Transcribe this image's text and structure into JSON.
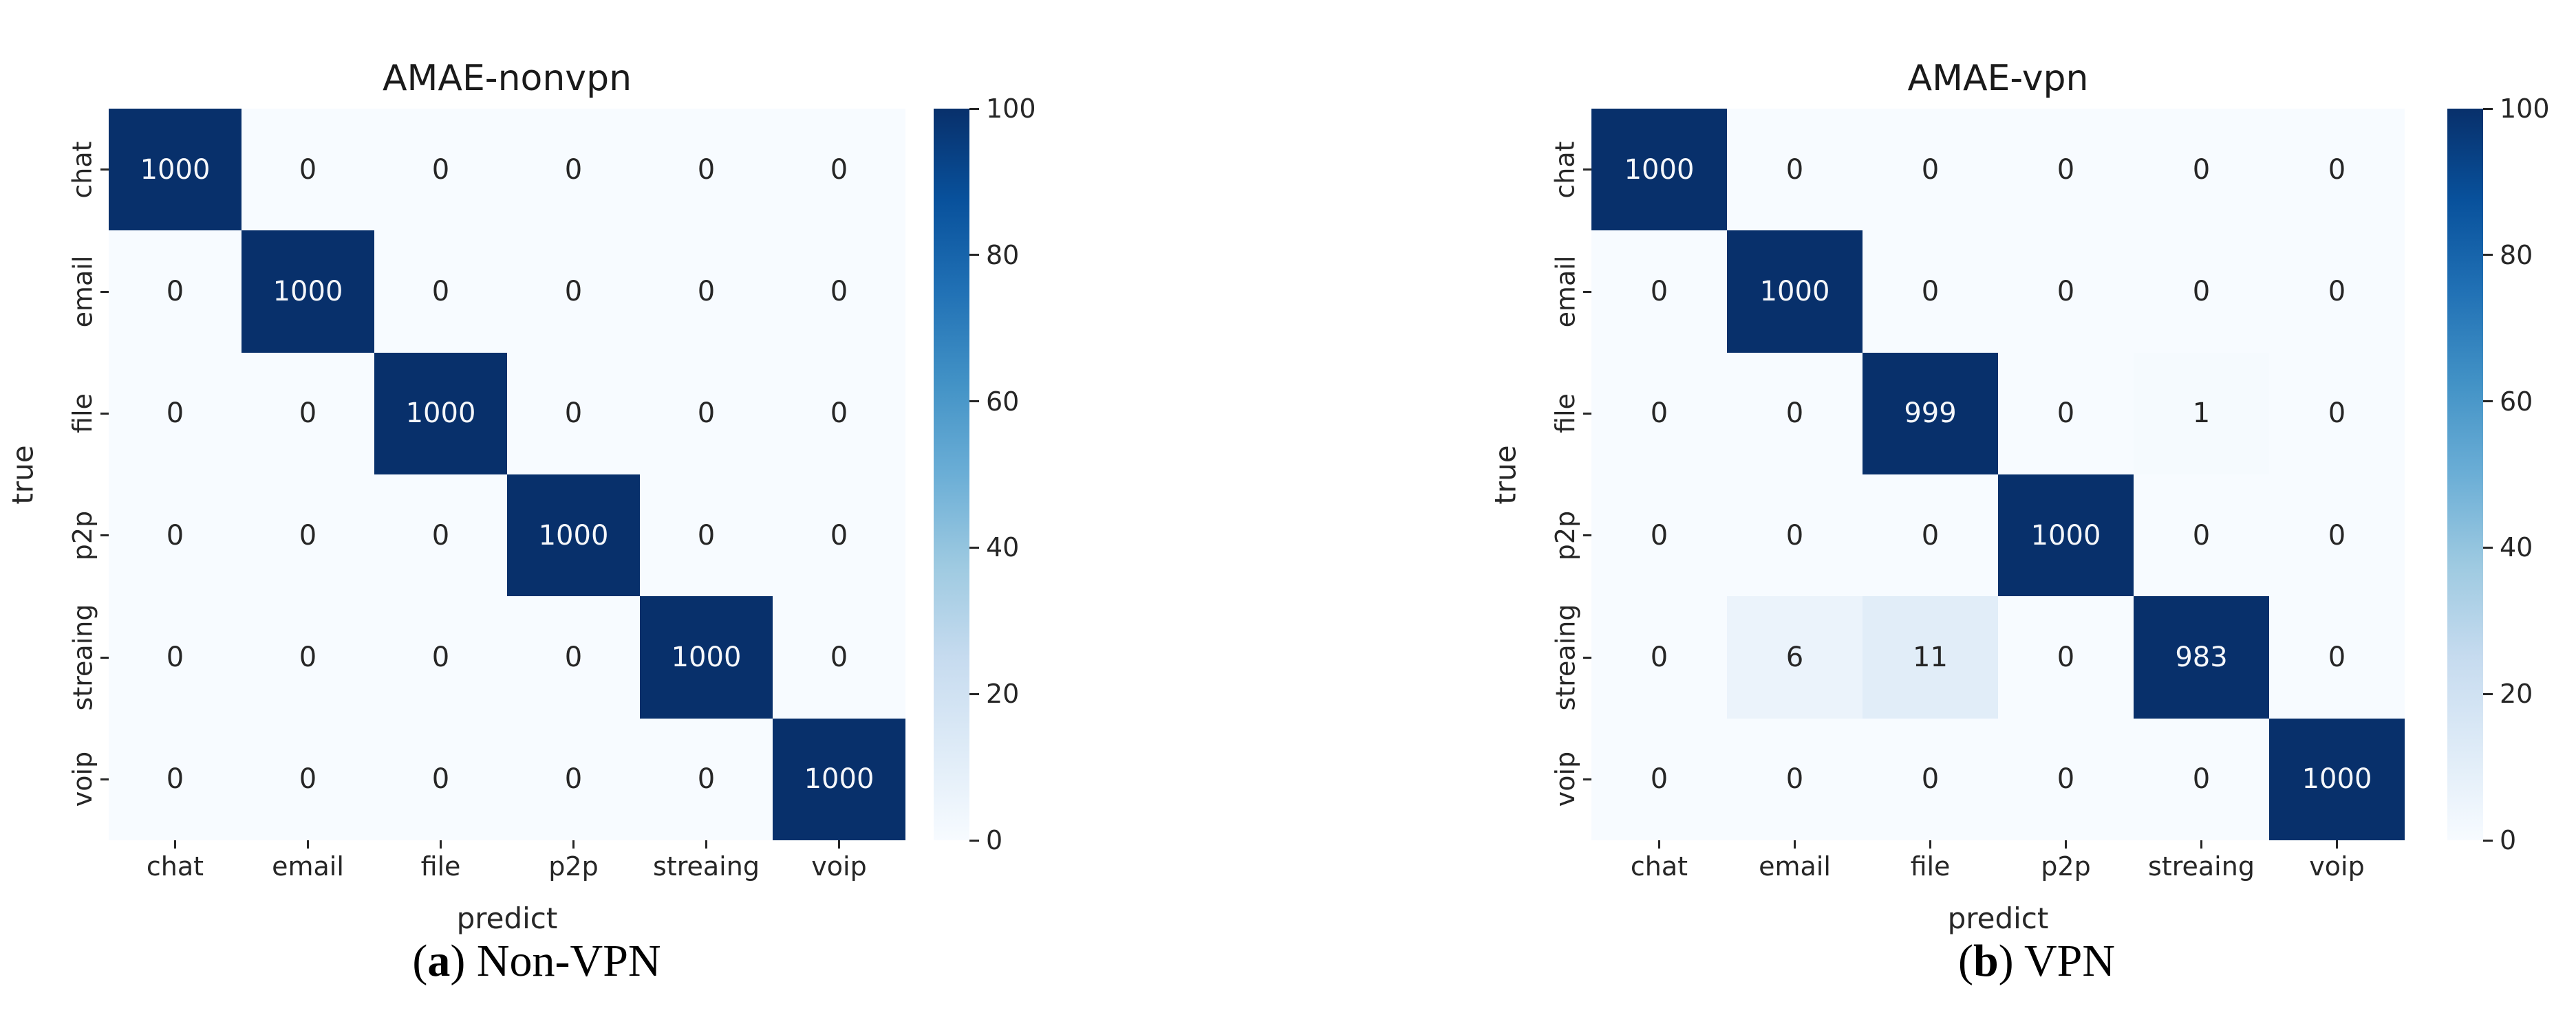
{
  "palette": {
    "background": "#ffffff",
    "cmap_name": "Blues",
    "cmap_stops": [
      "#f7fbff",
      "#deebf7",
      "#c6dbef",
      "#9ecae1",
      "#6baed6",
      "#4292c6",
      "#2171b5",
      "#08519c",
      "#08306b"
    ],
    "annot_light": "#f5f7fa",
    "annot_dark": "#262626",
    "tick_color": "#262626",
    "title_color": "#1a1a1a",
    "caption_color": "#000000"
  },
  "chart_data": [
    {
      "type": "heatmap",
      "title": "AMAE-nonvpn",
      "xlabel": "predict",
      "ylabel": "true",
      "x_categories": [
        "chat",
        "email",
        "file",
        "p2p",
        "streaing",
        "voip"
      ],
      "y_categories": [
        "chat",
        "email",
        "file",
        "p2p",
        "streaing",
        "voip"
      ],
      "matrix": [
        [
          1000,
          0,
          0,
          0,
          0,
          0
        ],
        [
          0,
          1000,
          0,
          0,
          0,
          0
        ],
        [
          0,
          0,
          1000,
          0,
          0,
          0
        ],
        [
          0,
          0,
          0,
          1000,
          0,
          0
        ],
        [
          0,
          0,
          0,
          0,
          1000,
          0
        ],
        [
          0,
          0,
          0,
          0,
          0,
          1000
        ]
      ],
      "colorbar": {
        "ticks": [
          100,
          80,
          60,
          40,
          20,
          0
        ],
        "vmin": 0,
        "vmax": 100
      },
      "legend_position": "right",
      "grid": false,
      "caption": {
        "open": "(",
        "letter": "a",
        "close": ")",
        "text": "Non-VPN"
      }
    },
    {
      "type": "heatmap",
      "title": "AMAE-vpn",
      "xlabel": "predict",
      "ylabel": "true",
      "x_categories": [
        "chat",
        "email",
        "file",
        "p2p",
        "streaing",
        "voip"
      ],
      "y_categories": [
        "chat",
        "email",
        "file",
        "p2p",
        "streaing",
        "voip"
      ],
      "matrix": [
        [
          1000,
          0,
          0,
          0,
          0,
          0
        ],
        [
          0,
          1000,
          0,
          0,
          0,
          0
        ],
        [
          0,
          0,
          999,
          0,
          1,
          0
        ],
        [
          0,
          0,
          0,
          1000,
          0,
          0
        ],
        [
          0,
          6,
          11,
          0,
          983,
          0
        ],
        [
          0,
          0,
          0,
          0,
          0,
          1000
        ]
      ],
      "colorbar": {
        "ticks": [
          100,
          80,
          60,
          40,
          20,
          0
        ],
        "vmin": 0,
        "vmax": 100
      },
      "legend_position": "right",
      "grid": false,
      "caption": {
        "open": "(",
        "letter": "b",
        "close": ")",
        "text": "VPN"
      }
    }
  ]
}
